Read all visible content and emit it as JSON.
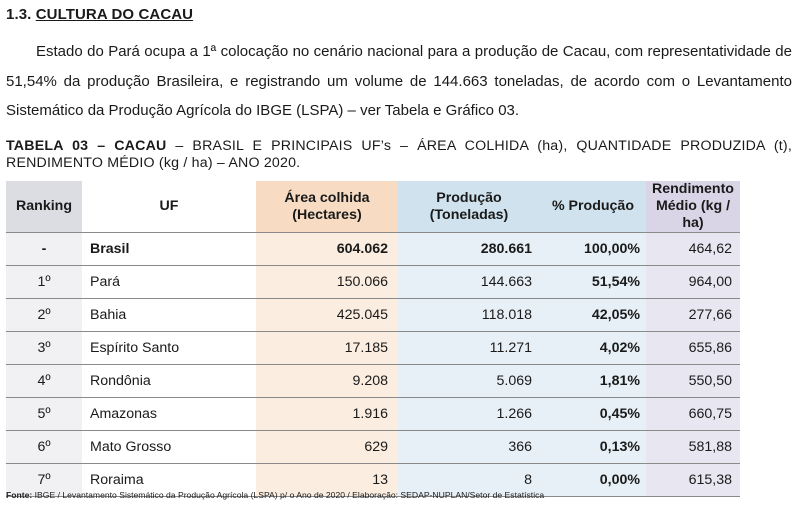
{
  "section": {
    "number": "1.3.",
    "title": "CULTURA DO CACAU"
  },
  "paragraph": "Estado do Pará ocupa a 1ª colocação no cenário nacional para a produção de Cacau, com representatividade de 51,54% da produção Brasileira, e registrando um volume de 144.663 toneladas, de acordo com o Levantamento Sistemático da Produção Agrícola do IBGE (LSPA) – ver Tabela e Gráfico 03.",
  "table_caption": {
    "label": "TABELA 03 – CACAU",
    "text": " – BRASIL E PRINCIPAIS UF’s – ÁREA COLHIDA (ha), QUANTIDADE PRODUZIDA (t), RENDIMENTO MÉDIO (kg / ha) – ANO 2020."
  },
  "table": {
    "headers": {
      "ranking": "Ranking",
      "uf": "UF",
      "area_l1": "Área colhida",
      "area_l2": "(Hectares)",
      "prod_l1": "Produção",
      "prod_l2": "(Toneladas)",
      "pct": "% Produção",
      "rend_l1": "Rendimento",
      "rend_l2": "Médio (kg / ha)"
    },
    "rows": [
      {
        "ranking": "-",
        "uf": "Brasil",
        "area": "604.062",
        "producao": "280.661",
        "pct": "100,00%",
        "rendimento": "464,62",
        "bold": true
      },
      {
        "ranking": "1º",
        "uf": "Pará",
        "area": "150.066",
        "producao": "144.663",
        "pct": "51,54%",
        "rendimento": "964,00"
      },
      {
        "ranking": "2º",
        "uf": "Bahia",
        "area": "425.045",
        "producao": "118.018",
        "pct": "42,05%",
        "rendimento": "277,66"
      },
      {
        "ranking": "3º",
        "uf": "Espírito Santo",
        "area": "17.185",
        "producao": "11.271",
        "pct": "4,02%",
        "rendimento": "655,86"
      },
      {
        "ranking": "4º",
        "uf": "Rondônia",
        "area": "9.208",
        "producao": "5.069",
        "pct": "1,81%",
        "rendimento": "550,50"
      },
      {
        "ranking": "5º",
        "uf": "Amazonas",
        "area": "1.916",
        "producao": "1.266",
        "pct": "0,45%",
        "rendimento": "660,75"
      },
      {
        "ranking": "6º",
        "uf": "Mato Grosso",
        "area": "629",
        "producao": "366",
        "pct": "0,13%",
        "rendimento": "581,88"
      },
      {
        "ranking": "7º",
        "uf": "Roraima",
        "area": "13",
        "producao": "8",
        "pct": "0,00%",
        "rendimento": "615,38"
      }
    ]
  },
  "source": {
    "label": "Fonte:",
    "text": " IBGE / Levantamento Sistemático da Produção Agrícola (LSPA) p/ o Ano de 2020 / Elaboração: SEDAP-NUPLAN/Setor de Estatística"
  },
  "colors": {
    "ranking_col": "#f1f1f3",
    "area_col": "#fbeee1",
    "producao_col": "#e7f0f6",
    "rendimento_col": "#e8e6f0"
  }
}
